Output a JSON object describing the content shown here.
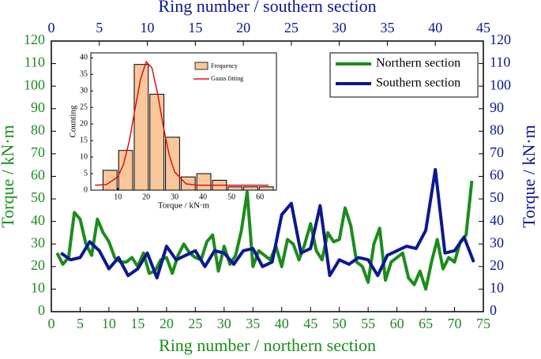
{
  "chart_data": [
    {
      "type": "line",
      "xlabel": "Ring number / northern section",
      "x2label": "Ring number / southern section",
      "ylabel": "Torque / kN·m",
      "y2label": "Torque / kN·m",
      "xlim": [
        0,
        75
      ],
      "xticks": [
        0,
        5,
        10,
        15,
        20,
        25,
        30,
        35,
        40,
        45,
        50,
        55,
        60,
        65,
        70,
        75
      ],
      "x2lim": [
        0,
        45
      ],
      "x2ticks": [
        0,
        5,
        10,
        15,
        20,
        25,
        30,
        35,
        40,
        45
      ],
      "ylim": [
        0,
        120
      ],
      "yticks": [
        0,
        10,
        20,
        30,
        40,
        50,
        60,
        70,
        80,
        90,
        100,
        110,
        120
      ],
      "y2lim": [
        0,
        120
      ],
      "y2ticks": [
        0,
        10,
        20,
        30,
        40,
        50,
        60,
        70,
        80,
        90,
        100,
        110,
        120
      ],
      "legend": "upper right",
      "series": [
        {
          "name": "Northern section",
          "color": "#1c8c1c",
          "axis": "x",
          "x": [
            1,
            2,
            3,
            4,
            5,
            6,
            7,
            8,
            9,
            10,
            11,
            12,
            13,
            14,
            15,
            16,
            17,
            18,
            19,
            20,
            21,
            22,
            23,
            24,
            25,
            26,
            27,
            28,
            29,
            30,
            31,
            32,
            33,
            34,
            35,
            36,
            37,
            38,
            39,
            40,
            41,
            42,
            43,
            44,
            45,
            46,
            47,
            48,
            49,
            50,
            51,
            52,
            53,
            54,
            55,
            56,
            57,
            58,
            59,
            60,
            61,
            62,
            63,
            64,
            65,
            66,
            67,
            68,
            69,
            70,
            71,
            72,
            73
          ],
          "values": [
            26,
            21,
            24,
            44,
            41,
            30,
            25,
            41,
            35,
            31,
            24,
            22,
            22,
            24,
            20,
            26,
            17,
            18,
            23,
            24,
            17,
            25,
            30,
            26,
            24,
            23,
            31,
            34,
            18,
            29,
            21,
            25,
            36,
            53,
            20,
            27,
            25,
            23,
            29,
            20,
            32,
            30,
            23,
            30,
            39,
            27,
            23,
            35,
            31,
            32,
            46,
            38,
            22,
            20,
            13,
            30,
            37,
            14,
            22,
            24,
            26,
            15,
            12,
            18,
            10,
            22,
            32,
            19,
            24,
            22,
            31,
            34,
            58
          ]
        },
        {
          "name": "Southern section",
          "color": "#0c1890",
          "axis": "x2",
          "x": [
            1,
            2,
            3,
            4,
            5,
            6,
            7,
            8,
            9,
            10,
            11,
            12,
            13,
            14,
            15,
            16,
            17,
            18,
            19,
            20,
            21,
            22,
            23,
            24,
            25,
            26,
            27,
            28,
            29,
            30,
            31,
            32,
            33,
            34,
            35,
            36,
            37,
            38,
            39,
            40,
            41,
            42,
            43,
            44
          ],
          "values": [
            26,
            23,
            24,
            31,
            27,
            19,
            24,
            16,
            19,
            26,
            15,
            29,
            23,
            25,
            27,
            20,
            27,
            26,
            21,
            27,
            28,
            20,
            22,
            43,
            48,
            26,
            28,
            47,
            16,
            23,
            21,
            24,
            23,
            16,
            25,
            27,
            29,
            28,
            36,
            63,
            26,
            27,
            33,
            22
          ]
        }
      ]
    },
    {
      "type": "histogram",
      "xlabel": "Torque / kN·m",
      "ylabel": "Counting",
      "xlim": [
        0.5,
        65.8
      ],
      "xticks": [
        10,
        20,
        30,
        40,
        50,
        60
      ],
      "ylim": [
        0,
        41.5
      ],
      "yticks": [
        0,
        5,
        10,
        15,
        20,
        25,
        30,
        35,
        40
      ],
      "bins": [
        4.5,
        10,
        15.5,
        21,
        26.5,
        32,
        37.5,
        43,
        48.5,
        54,
        59.5,
        65
      ],
      "counts": [
        6,
        12,
        38,
        29,
        16,
        4,
        5,
        3,
        1,
        1,
        1
      ],
      "name": "Frequency",
      "color": "#f8c79c",
      "fit": {
        "name": "Gauss fitting",
        "color": "#e01010",
        "x": [
          2,
          6,
          10,
          12,
          14,
          16,
          18,
          20,
          22,
          24,
          26,
          28,
          30,
          34,
          38,
          45,
          55,
          63
        ],
        "values": [
          1.5,
          1.7,
          4.0,
          7.8,
          14.7,
          24.3,
          33.6,
          38.8,
          37,
          29.2,
          19.3,
          10.9,
          5.5,
          1.9,
          1.5,
          1.5,
          1.5,
          1.5
        ]
      }
    }
  ]
}
